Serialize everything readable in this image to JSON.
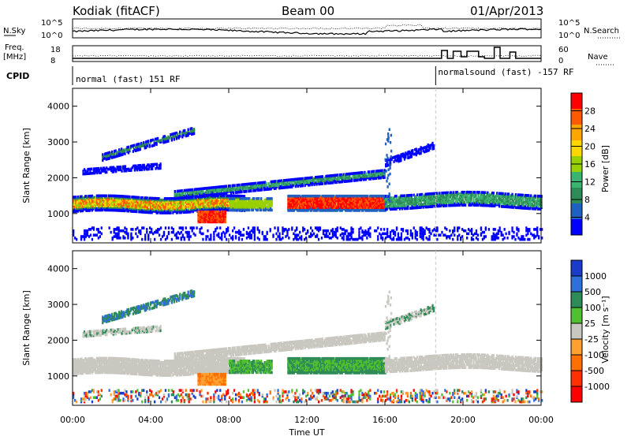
{
  "header": {
    "station": "Kodiak (fitACF)",
    "beam": "Beam 00",
    "date": "01/Apr/2013"
  },
  "strips": {
    "nsky_label": "N.Sky",
    "nsky_ticks": [
      "10^5",
      "10^0"
    ],
    "nsearch_label": "N.Search",
    "nsearch_ticks": [
      "10^5",
      "10^0"
    ],
    "freq_label_1": "Freq.",
    "freq_label_2": "[MHz]",
    "freq_ticks": [
      "18",
      "8"
    ],
    "nave_label": "Nave",
    "nave_ticks": [
      "60",
      "0"
    ],
    "cpid_label": "CPID",
    "cpid_1": "normal (fast) 151 RF",
    "cpid_2": "normalsound (fast) -157 RF",
    "cpid_switch_hour": 18.6
  },
  "chart_data": [
    {
      "type": "heatmap",
      "panel": "power",
      "ylabel": "Slant Range [km]",
      "yticks": [
        "4000",
        "3000",
        "2000",
        "1000"
      ],
      "yvalues": [
        4000,
        3000,
        2000,
        1000
      ],
      "ylim": [
        180,
        4500
      ],
      "xlim": [
        0,
        24
      ],
      "colorbar": {
        "label": "Power [dB]",
        "ticks": [
          "28",
          "24",
          "20",
          "16",
          "12",
          "8",
          "4"
        ],
        "colors": [
          "#ff0000",
          "#ff5a00",
          "#ffa500",
          "#ffd700",
          "#98d000",
          "#3cb371",
          "#2e8b57",
          "#2060c0",
          "#0000ff"
        ]
      }
    },
    {
      "type": "heatmap",
      "panel": "velocity",
      "ylabel": "Slant Range [km]",
      "yticks": [
        "4000",
        "3000",
        "2000",
        "1000"
      ],
      "yvalues": [
        4000,
        3000,
        2000,
        1000
      ],
      "ylim": [
        180,
        4500
      ],
      "xlim": [
        0,
        24
      ],
      "colorbar": {
        "label": "Velocity [m s⁻¹]",
        "ticks": [
          "1000",
          "500",
          "100",
          "25",
          "-25",
          "-100",
          "-500",
          "-1000"
        ],
        "colors": [
          "#1a3cc8",
          "#2f6fdc",
          "#2e8b57",
          "#50c030",
          "#c8c8c0",
          "#ffa030",
          "#ff7000",
          "#ff3000",
          "#ff0000"
        ]
      }
    }
  ],
  "xaxis": {
    "label": "Time UT",
    "ticks": [
      "00:00",
      "04:00",
      "08:00",
      "12:00",
      "16:00",
      "20:00",
      "00:00"
    ],
    "tick_hours": [
      0,
      4,
      8,
      12,
      16,
      20,
      24
    ]
  },
  "colors": {
    "scatter_blue": "#1f3fbf",
    "ground_gray": "#c8c8c0"
  }
}
